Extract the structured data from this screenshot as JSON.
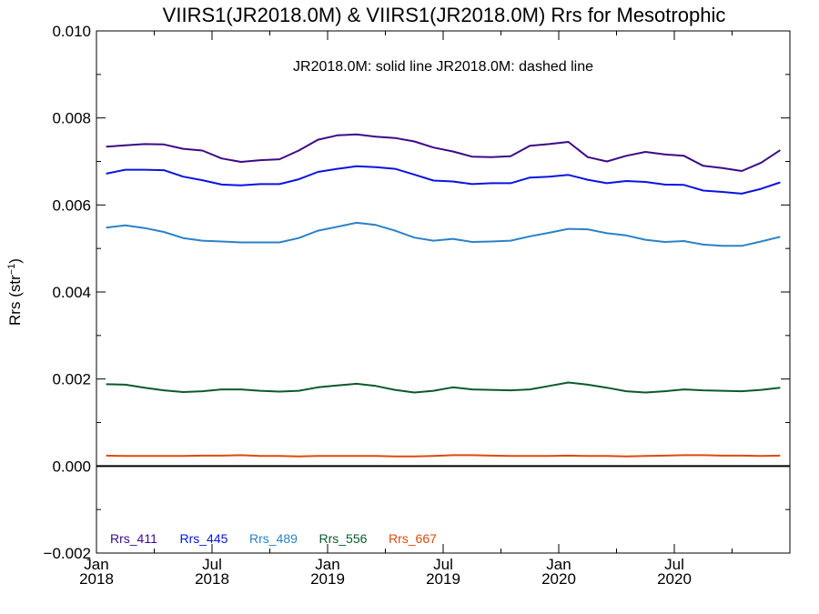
{
  "chart_data": {
    "type": "line",
    "title": "VIIRS1(JR2018.0M) & VIIRS1(JR2018.0M)  Rrs for Mesotrophic",
    "annotation": "JR2018.0M: solid line   JR2018.0M: dashed line",
    "ylabel": "Rrs (str⁻¹)",
    "xlabel": "",
    "xlim": [
      "2018-01",
      "2020-12"
    ],
    "ylim": [
      -0.002,
      0.01
    ],
    "yticks": [
      "0.010",
      "0.008",
      "0.006",
      "0.004",
      "0.002",
      "0.000",
      "−0.002"
    ],
    "ytick_values": [
      0.01,
      0.008,
      0.006,
      0.004,
      0.002,
      0.0,
      -0.002
    ],
    "xticks": [
      {
        "month": "Jan",
        "year": "2018",
        "t": 0
      },
      {
        "month": "Jul",
        "year": "2018",
        "t": 6
      },
      {
        "month": "Jan",
        "year": "2019",
        "t": 12
      },
      {
        "month": "Jul",
        "year": "2019",
        "t": 18
      },
      {
        "month": "Jan",
        "year": "2020",
        "t": 24
      },
      {
        "month": "Jul",
        "year": "2020",
        "t": 30
      }
    ],
    "zero_line": true,
    "grid": false,
    "legend_position": "bottom-left",
    "x": [
      "2018-01",
      "2018-02",
      "2018-03",
      "2018-04",
      "2018-05",
      "2018-06",
      "2018-07",
      "2018-08",
      "2018-09",
      "2018-10",
      "2018-11",
      "2018-12",
      "2019-01",
      "2019-02",
      "2019-03",
      "2019-04",
      "2019-05",
      "2019-06",
      "2019-07",
      "2019-08",
      "2019-09",
      "2019-10",
      "2019-11",
      "2019-12",
      "2020-01",
      "2020-02",
      "2020-03",
      "2020-04",
      "2020-05",
      "2020-06",
      "2020-07",
      "2020-08",
      "2020-09",
      "2020-10",
      "2020-11",
      "2020-12"
    ],
    "series": [
      {
        "name": "Rrs_411",
        "color": "#3d0a87",
        "values": [
          0.00734,
          0.00737,
          0.0074,
          0.00739,
          0.00729,
          0.00725,
          0.00707,
          0.00699,
          0.00703,
          0.00705,
          0.00725,
          0.0075,
          0.0076,
          0.00762,
          0.00757,
          0.00754,
          0.00746,
          0.00732,
          0.00723,
          0.00711,
          0.0071,
          0.00712,
          0.00736,
          0.0074,
          0.00745,
          0.0071,
          0.007,
          0.00713,
          0.00722,
          0.00716,
          0.00713,
          0.0069,
          0.00685,
          0.00678,
          0.00697,
          0.00726
        ]
      },
      {
        "name": "Rrs_445",
        "color": "#0a14e0",
        "values": [
          0.00672,
          0.00681,
          0.00681,
          0.0068,
          0.00665,
          0.00657,
          0.00647,
          0.00645,
          0.00648,
          0.00648,
          0.00659,
          0.00676,
          0.00683,
          0.00689,
          0.00687,
          0.00683,
          0.0067,
          0.00656,
          0.00654,
          0.00648,
          0.0065,
          0.0065,
          0.00663,
          0.00665,
          0.00669,
          0.00658,
          0.0065,
          0.00655,
          0.00653,
          0.00647,
          0.00646,
          0.00633,
          0.0063,
          0.00626,
          0.00637,
          0.00652
        ]
      },
      {
        "name": "Rrs_489",
        "color": "#2a82c8",
        "values": [
          0.00548,
          0.00553,
          0.00547,
          0.00538,
          0.00524,
          0.00518,
          0.00516,
          0.00514,
          0.00514,
          0.00514,
          0.00524,
          0.00541,
          0.0055,
          0.00559,
          0.00554,
          0.00541,
          0.00525,
          0.00518,
          0.00522,
          0.00515,
          0.00516,
          0.00518,
          0.00528,
          0.00536,
          0.00545,
          0.00544,
          0.00535,
          0.0053,
          0.0052,
          0.00515,
          0.00517,
          0.00509,
          0.00506,
          0.00506,
          0.00516,
          0.00527
        ]
      },
      {
        "name": "Rrs_556",
        "color": "#0a5a2a",
        "values": [
          0.00188,
          0.00187,
          0.0018,
          0.00174,
          0.0017,
          0.00172,
          0.00176,
          0.00176,
          0.00173,
          0.00171,
          0.00173,
          0.00181,
          0.00185,
          0.00189,
          0.00184,
          0.00175,
          0.00169,
          0.00173,
          0.00181,
          0.00176,
          0.00175,
          0.00174,
          0.00176,
          0.00184,
          0.00192,
          0.00187,
          0.0018,
          0.00172,
          0.00169,
          0.00172,
          0.00176,
          0.00174,
          0.00173,
          0.00172,
          0.00175,
          0.0018
        ]
      },
      {
        "name": "Rrs_667",
        "color": "#e04a0a",
        "values": [
          0.00024,
          0.00023,
          0.00023,
          0.00023,
          0.00023,
          0.00024,
          0.00024,
          0.00025,
          0.00023,
          0.00023,
          0.00022,
          0.00023,
          0.00023,
          0.00023,
          0.00023,
          0.00022,
          0.00022,
          0.00023,
          0.00025,
          0.00025,
          0.00024,
          0.00023,
          0.00023,
          0.00023,
          0.00024,
          0.00023,
          0.00023,
          0.00022,
          0.00023,
          0.00024,
          0.00025,
          0.00025,
          0.00024,
          0.00024,
          0.00023,
          0.00024
        ]
      }
    ]
  }
}
